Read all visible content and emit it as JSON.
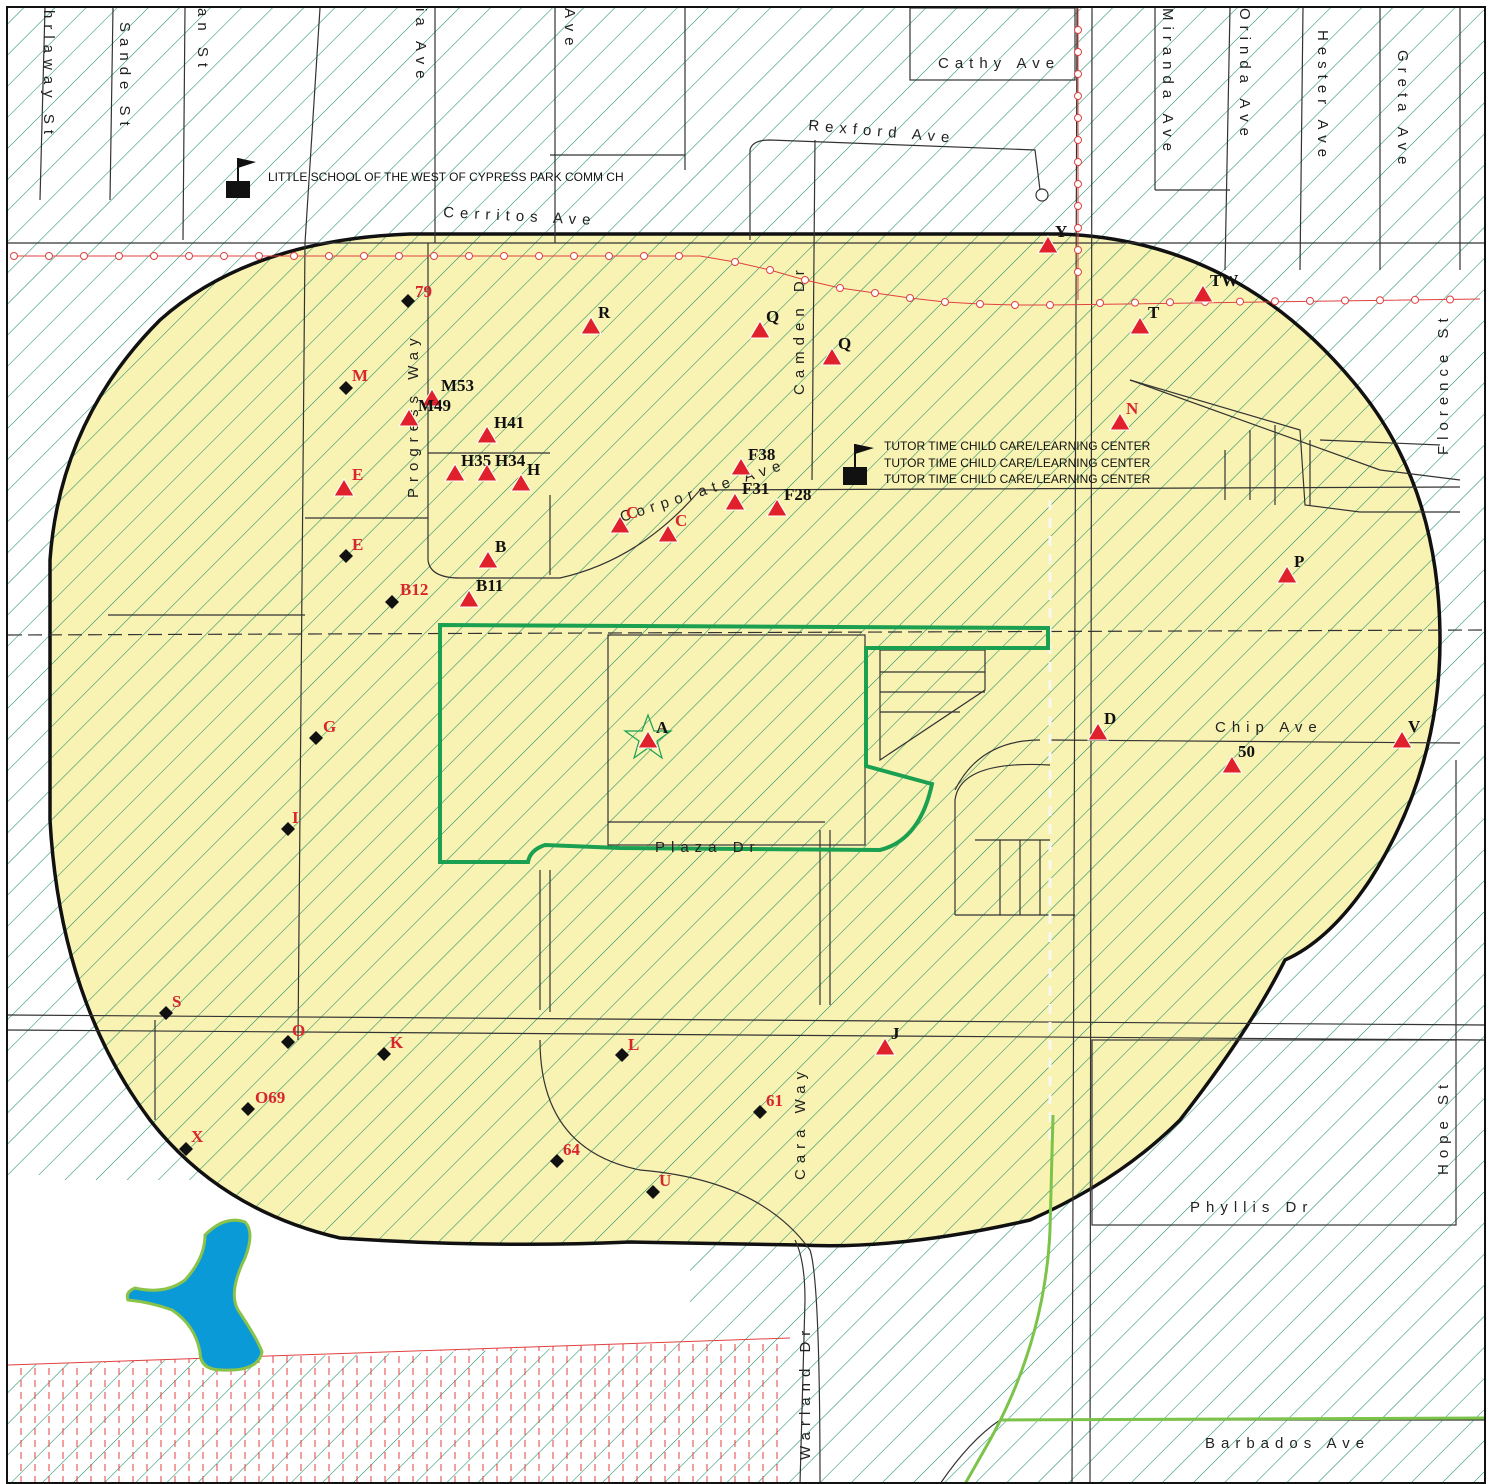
{
  "streets": {
    "cathy": "Cathy Ave",
    "rexford": "Rexford Ave",
    "cerritos": "Cerritos Ave",
    "camden": "Camden Dr",
    "progress": "Progress Way",
    "corporate": "Corporate Ave",
    "chip": "Chip Ave",
    "plaza": "Plaza Dr",
    "cara": "Cara Way",
    "phyllis": "Phyllis Dr",
    "barbados": "Barbados Ave",
    "warland": "Warland Dr",
    "hope": "Hope St",
    "florence": "Florence St",
    "hester": "Hester Ave",
    "greta": "Greta Ave",
    "miranda": "Miranda Ave",
    "orinda": "Orinda Ave",
    "sande": "Sande St",
    "ahrlaway": "hrlaway St",
    "anst": "an St",
    "iaave": "ia Ave",
    "topave": "Ave"
  },
  "schools": [
    "LITTLE SCHOOL OF THE WEST OF CYPRESS PARK COMM CH",
    "TUTOR TIME CHILD CARE/LEARNING CENTER",
    "TUTOR TIME CHILD CARE/LEARNING CENTER",
    "TUTOR TIME CHILD CARE/LEARNING CENTER"
  ],
  "site_labels": {
    "triangles": [
      "Y",
      "TW",
      "T",
      "R",
      "Q",
      "Q",
      "M53",
      "M49",
      "H41",
      "H35",
      "H34",
      "H",
      "E",
      "F38",
      "F31",
      "F28",
      "C",
      "C",
      "B",
      "B11",
      "N",
      "P",
      "A",
      "D",
      "V",
      "50",
      "J"
    ],
    "diamonds": [
      "79",
      "M",
      "E",
      "B12",
      "G",
      "I",
      "S",
      "O",
      "K",
      "L",
      "O69",
      "61",
      "X",
      "64",
      "U"
    ]
  },
  "colors": {
    "buffer_fill": "#f8f2ad",
    "hatch": "#1f8f6a",
    "site_outline": "#1aa050",
    "triangle": "#e0202a",
    "diamond": "#111111",
    "red_line": "#e04040",
    "water": "#0a9ad8"
  }
}
